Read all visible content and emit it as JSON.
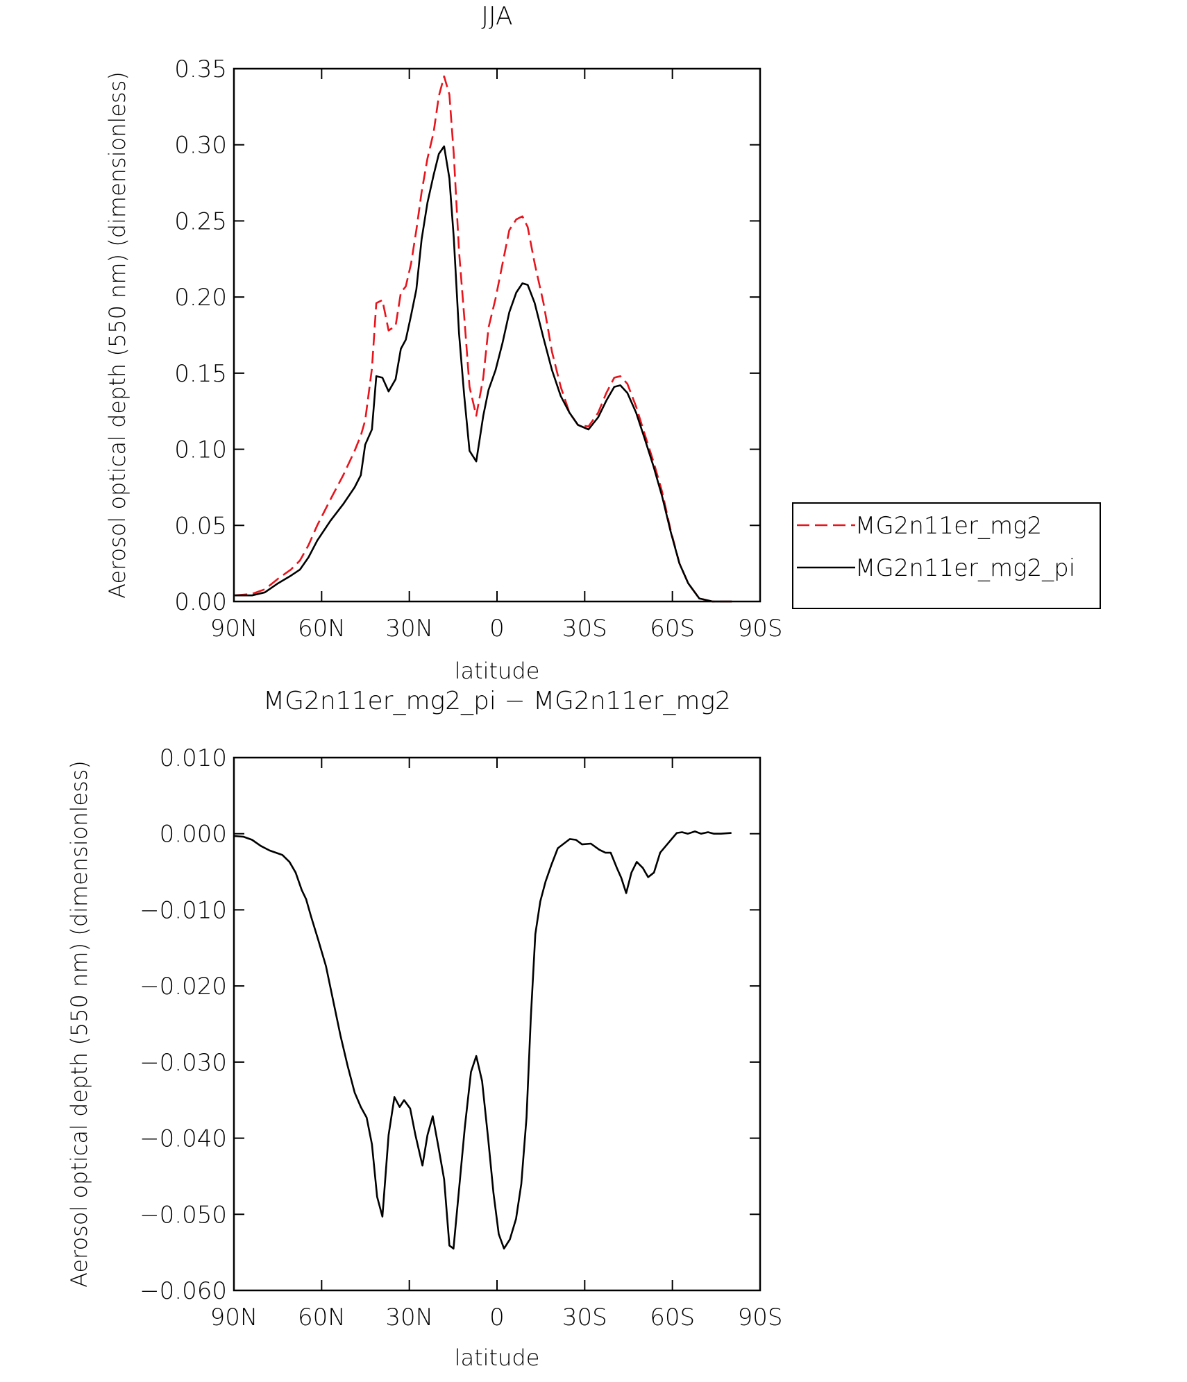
{
  "chart_data": [
    {
      "type": "line",
      "title": "JJA",
      "xlabel": "latitude",
      "ylabel": "Aerosol optical depth (550 nm) (dimensionless)",
      "x": [
        89.7,
        83.8,
        79.4,
        74.9,
        70.5,
        67.4,
        64.5,
        61.5,
        57.0,
        52.6,
        48.7,
        46.6,
        45.1,
        42.8,
        41.3,
        39.2,
        37.1,
        34.7,
        32.9,
        31.2,
        29.4,
        27.6,
        25.8,
        23.8,
        21.7,
        19.9,
        18.1,
        16.3,
        14.8,
        13.0,
        11.2,
        9.4,
        7.1,
        4.7,
        2.9,
        0.5,
        -1.9,
        -4.2,
        -6.6,
        -8.7,
        -10.5,
        -12.9,
        -15.9,
        -18.8,
        -21.8,
        -24.8,
        -27.7,
        -31.3,
        -34.6,
        -37.4,
        -40.1,
        -42.2,
        -44.6,
        -47.6,
        -50.5,
        -53.5,
        -56.5,
        -59.4,
        -62.4,
        -65.4,
        -69.2,
        -73.7,
        -80.3
      ],
      "series": [
        {
          "name": "MG2n11er_mg2",
          "color": "#e8141c",
          "dash": true,
          "values": [
            0.004,
            0.005,
            0.008,
            0.015,
            0.021,
            0.027,
            0.037,
            0.05,
            0.067,
            0.083,
            0.099,
            0.109,
            0.119,
            0.153,
            0.196,
            0.198,
            0.178,
            0.181,
            0.203,
            0.207,
            0.222,
            0.244,
            0.269,
            0.291,
            0.308,
            0.332,
            0.345,
            0.333,
            0.294,
            0.23,
            0.187,
            0.141,
            0.122,
            0.147,
            0.18,
            0.199,
            0.222,
            0.244,
            0.251,
            0.253,
            0.246,
            0.222,
            0.196,
            0.164,
            0.141,
            0.124,
            0.116,
            0.115,
            0.124,
            0.137,
            0.147,
            0.148,
            0.143,
            0.128,
            0.11,
            0.092,
            0.072,
            0.047,
            0.025,
            0.012,
            0.002,
            0.0,
            0.0
          ]
        },
        {
          "name": "MG2n11er_mg2_pi",
          "color": "#000000",
          "dash": false,
          "values": [
            0.004,
            0.004,
            0.006,
            0.012,
            0.017,
            0.021,
            0.029,
            0.04,
            0.053,
            0.064,
            0.075,
            0.083,
            0.103,
            0.113,
            0.148,
            0.147,
            0.138,
            0.146,
            0.166,
            0.172,
            0.188,
            0.205,
            0.238,
            0.262,
            0.28,
            0.294,
            0.299,
            0.278,
            0.239,
            0.176,
            0.135,
            0.099,
            0.092,
            0.122,
            0.139,
            0.152,
            0.17,
            0.19,
            0.203,
            0.209,
            0.208,
            0.196,
            0.173,
            0.152,
            0.135,
            0.124,
            0.116,
            0.113,
            0.121,
            0.132,
            0.141,
            0.142,
            0.137,
            0.124,
            0.107,
            0.089,
            0.069,
            0.046,
            0.025,
            0.012,
            0.002,
            0.0,
            0.0
          ]
        }
      ],
      "xlim": [
        90,
        -90
      ],
      "xticks": [
        {
          "value": 90,
          "label": "90N"
        },
        {
          "value": 60,
          "label": "60N"
        },
        {
          "value": 30,
          "label": "30N"
        },
        0,
        {
          "value": -30,
          "label": "30S"
        },
        {
          "value": -60,
          "label": "60S"
        },
        {
          "value": -90,
          "label": "90S"
        }
      ],
      "ylim": [
        0,
        0.35
      ],
      "yticks": [
        {
          "value": 0,
          "label": "0.00"
        },
        0.05,
        {
          "value": 0.1,
          "label": "0.10"
        },
        0.15,
        {
          "value": 0.2,
          "label": "0.20"
        },
        0.25,
        {
          "value": 0.3,
          "label": "0.30"
        },
        0.35
      ],
      "legend": "outside-right"
    },
    {
      "type": "line",
      "title": "MG2n11er_mg2_pi − MG2n11er_mg2",
      "xlabel": "latitude",
      "ylabel": "Aerosol optical depth (550 nm) (dimensionless)",
      "x": [
        90.0,
        86.7,
        83.8,
        80.8,
        77.8,
        73.4,
        71.0,
        68.9,
        66.8,
        65.3,
        63.6,
        61.2,
        58.5,
        55.9,
        53.5,
        51.1,
        48.7,
        46.6,
        44.6,
        42.8,
        41.0,
        39.2,
        37.1,
        35.1,
        33.3,
        31.8,
        29.7,
        27.9,
        25.5,
        23.8,
        22.0,
        20.2,
        18.1,
        16.3,
        14.9,
        13.1,
        11.0,
        8.9,
        7.1,
        5.1,
        3.0,
        1.2,
        -0.6,
        -2.4,
        -4.4,
        -6.5,
        -8.3,
        -10.1,
        -11.6,
        -13.1,
        -14.8,
        -16.6,
        -18.7,
        -20.8,
        -23.2,
        -24.9,
        -27.0,
        -29.1,
        -32.1,
        -35.0,
        -37.1,
        -38.9,
        -41.0,
        -42.5,
        -44.2,
        -46.0,
        -47.8,
        -49.9,
        -51.7,
        -53.7,
        -55.8,
        -58.2,
        -61.5,
        -63.3,
        -65.3,
        -67.7,
        -69.8,
        -72.2,
        -74.2,
        -76.6,
        -80.2
      ],
      "series": [
        {
          "color": "#000000",
          "dash": false,
          "values": [
            -0.0003,
            -0.0004,
            -0.0008,
            -0.0016,
            -0.0022,
            -0.0028,
            -0.0037,
            -0.0051,
            -0.0074,
            -0.0086,
            -0.0109,
            -0.0139,
            -0.0174,
            -0.0222,
            -0.0266,
            -0.0305,
            -0.034,
            -0.0359,
            -0.0373,
            -0.0408,
            -0.0477,
            -0.0503,
            -0.0396,
            -0.0346,
            -0.0359,
            -0.035,
            -0.0361,
            -0.0396,
            -0.0436,
            -0.0396,
            -0.0371,
            -0.0408,
            -0.0454,
            -0.0541,
            -0.0545,
            -0.0472,
            -0.0385,
            -0.0313,
            -0.0292,
            -0.0325,
            -0.0402,
            -0.0472,
            -0.0526,
            -0.0545,
            -0.0533,
            -0.0506,
            -0.046,
            -0.0373,
            -0.024,
            -0.0132,
            -0.0089,
            -0.0063,
            -0.004,
            -0.0019,
            -0.0012,
            -0.0007,
            -0.0008,
            -0.0014,
            -0.0013,
            -0.0021,
            -0.0025,
            -0.0025,
            -0.0045,
            -0.0058,
            -0.0078,
            -0.0051,
            -0.0037,
            -0.0045,
            -0.0057,
            -0.0051,
            -0.0025,
            -0.0014,
            0.0001,
            0.0002,
            0.0,
            0.0003,
            0.0,
            0.0002,
            0.0,
            0.0,
            0.0001
          ]
        }
      ],
      "xlim": [
        90,
        -90
      ],
      "xticks": [
        {
          "value": 90,
          "label": "90N"
        },
        {
          "value": 60,
          "label": "60N"
        },
        {
          "value": 30,
          "label": "30N"
        },
        0,
        {
          "value": -30,
          "label": "30S"
        },
        {
          "value": -60,
          "label": "60S"
        },
        {
          "value": -90,
          "label": "90S"
        }
      ],
      "ylim": [
        -0.06,
        0.01
      ],
      "yticks": [
        {
          "value": 0.01,
          "label": "0.010"
        },
        {
          "value": 0,
          "label": "0.000"
        },
        {
          "value": -0.01,
          "label": "−0.010"
        },
        {
          "value": -0.02,
          "label": "−0.020"
        },
        {
          "value": -0.03,
          "label": "−0.030"
        },
        {
          "value": -0.04,
          "label": "−0.040"
        },
        {
          "value": -0.05,
          "label": "−0.050"
        },
        {
          "value": -0.06,
          "label": "−0.060"
        }
      ]
    }
  ]
}
